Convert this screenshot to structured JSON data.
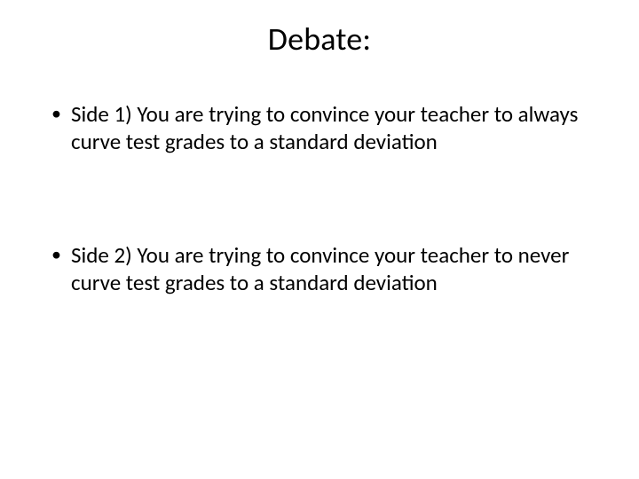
{
  "slide": {
    "title": "Debate:",
    "bullets": [
      {
        "text": "Side 1) You are trying to convince your teacher to always curve test grades to a standard deviation"
      },
      {
        "text": "Side 2) You are trying to convince your teacher to never curve test grades to a standard deviation"
      }
    ],
    "title_fontsize": 36,
    "bullet_fontsize": 25,
    "background_color": "#ffffff",
    "text_color": "#000000",
    "font_family": "Calibri"
  }
}
